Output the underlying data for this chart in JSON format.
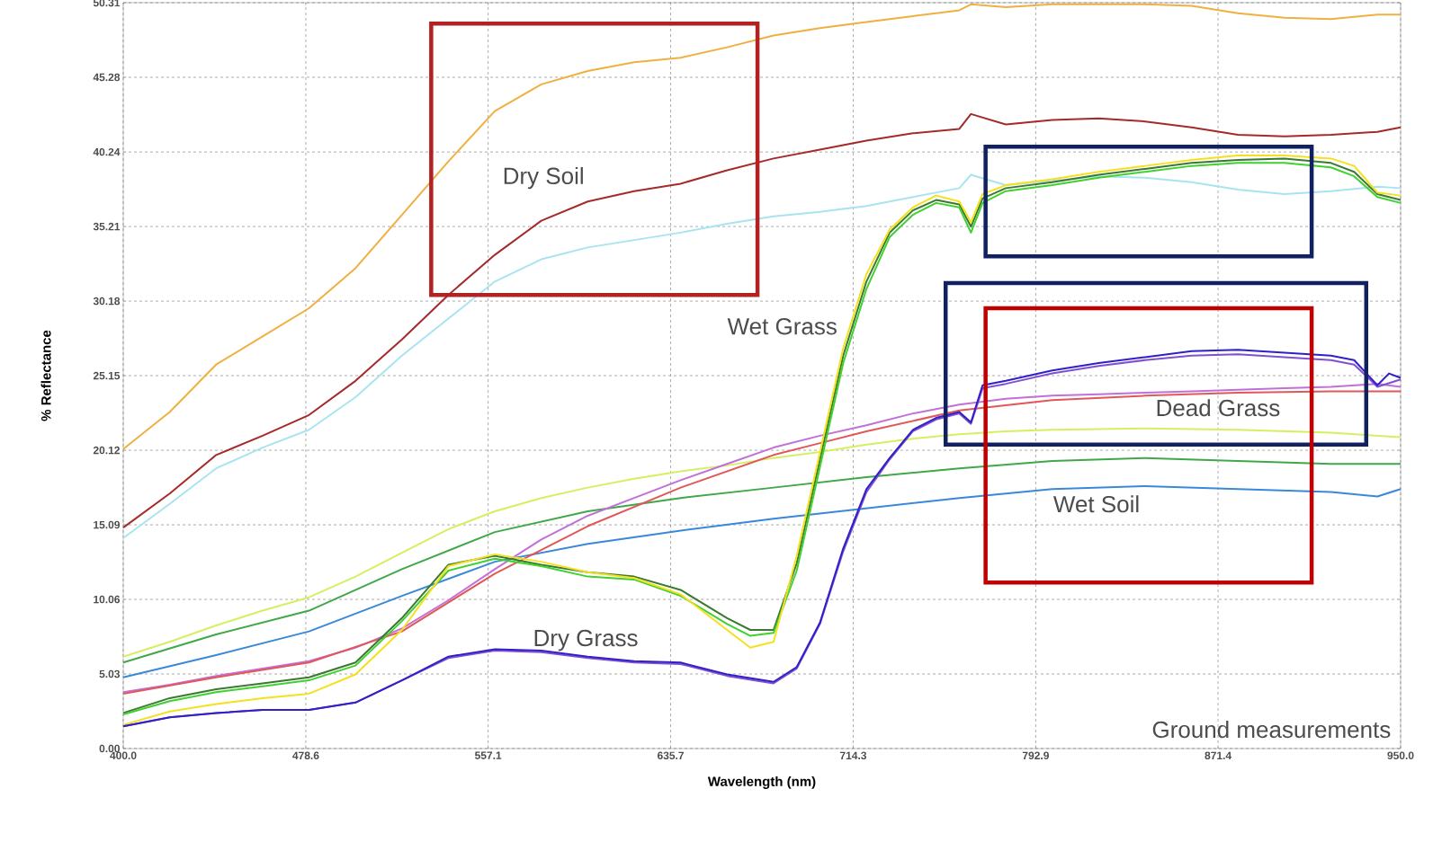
{
  "chart_data": {
    "type": "line",
    "xlabel": "Wavelength (nm)",
    "ylabel": "% Reflectance",
    "xlim": [
      400,
      950
    ],
    "ylim": [
      0,
      50.31
    ],
    "xticks": [
      {
        "value": 400,
        "label": "400.0"
      },
      478.6,
      557.1,
      635.7,
      714.3,
      792.9,
      871.4,
      {
        "value": 950,
        "label": "950.0"
      }
    ],
    "yticks": [
      {
        "value": 0,
        "label": "0.00"
      },
      5.03,
      10.06,
      15.09,
      20.12,
      25.15,
      30.18,
      35.21,
      40.24,
      45.28,
      50.31
    ],
    "grid": true,
    "marker": "none",
    "line_style": "solid",
    "annotations": [
      "Dry Soil",
      "Wet Grass",
      "Dead Grass",
      "Wet Soil",
      "Dry Grass",
      "Ground measurements"
    ],
    "series": [
      {
        "color": "#f0b040",
        "x": [
          400,
          420,
          440,
          460,
          480,
          500,
          520,
          540,
          560,
          580,
          600,
          620,
          640,
          660,
          680,
          700,
          720,
          740,
          760,
          765,
          780,
          800,
          820,
          840,
          860,
          880,
          900,
          920,
          940,
          950
        ],
        "values": [
          20.2,
          22.7,
          25.9,
          27.8,
          29.7,
          32.4,
          36.0,
          39.6,
          43.0,
          44.8,
          45.7,
          46.3,
          46.6,
          47.3,
          48.1,
          48.6,
          49.0,
          49.4,
          49.8,
          50.2,
          50.0,
          50.2,
          50.2,
          50.2,
          50.1,
          49.6,
          49.3,
          49.2,
          49.5,
          49.5
        ]
      },
      {
        "color": "#a52a2a",
        "x": [
          400,
          420,
          440,
          460,
          480,
          500,
          520,
          540,
          560,
          580,
          600,
          620,
          640,
          660,
          680,
          700,
          720,
          740,
          760,
          765,
          780,
          800,
          820,
          840,
          860,
          880,
          900,
          920,
          940,
          950
        ],
        "values": [
          14.9,
          17.2,
          19.8,
          21.1,
          22.5,
          24.8,
          27.6,
          30.6,
          33.3,
          35.6,
          36.9,
          37.6,
          38.1,
          39.0,
          39.8,
          40.4,
          41.0,
          41.5,
          41.8,
          42.8,
          42.1,
          42.4,
          42.5,
          42.3,
          41.9,
          41.4,
          41.3,
          41.4,
          41.6,
          41.9
        ]
      },
      {
        "color": "#a8e4f0",
        "x": [
          400,
          420,
          440,
          460,
          480,
          500,
          520,
          540,
          560,
          580,
          600,
          620,
          640,
          660,
          680,
          700,
          720,
          740,
          760,
          765,
          780,
          800,
          820,
          840,
          860,
          880,
          900,
          920,
          940,
          950
        ],
        "values": [
          14.2,
          16.5,
          18.9,
          20.3,
          21.5,
          23.7,
          26.5,
          29.0,
          31.5,
          33.0,
          33.8,
          34.3,
          34.8,
          35.4,
          35.9,
          36.2,
          36.6,
          37.2,
          37.8,
          38.7,
          38.0,
          38.3,
          38.6,
          38.5,
          38.2,
          37.7,
          37.4,
          37.6,
          37.9,
          37.8
        ]
      },
      {
        "color": "#d4f060",
        "x": [
          400,
          420,
          440,
          460,
          480,
          500,
          520,
          540,
          560,
          580,
          600,
          620,
          640,
          660,
          680,
          700,
          720,
          740,
          760,
          780,
          800,
          840,
          880,
          920,
          950
        ],
        "values": [
          6.2,
          7.2,
          8.3,
          9.3,
          10.2,
          11.6,
          13.2,
          14.8,
          16.0,
          16.9,
          17.6,
          18.2,
          18.7,
          19.1,
          19.6,
          20.0,
          20.5,
          20.9,
          21.2,
          21.4,
          21.5,
          21.6,
          21.5,
          21.3,
          21.0
        ]
      },
      {
        "color": "#40a848",
        "x": [
          400,
          440,
          480,
          520,
          560,
          600,
          640,
          680,
          720,
          760,
          800,
          840,
          880,
          920,
          950
        ],
        "values": [
          5.8,
          7.7,
          9.3,
          12.1,
          14.6,
          16.0,
          16.9,
          17.6,
          18.3,
          18.9,
          19.4,
          19.6,
          19.4,
          19.2,
          19.2
        ]
      },
      {
        "color": "#3a88d8",
        "x": [
          400,
          440,
          480,
          520,
          560,
          600,
          640,
          680,
          720,
          760,
          800,
          840,
          880,
          920,
          940,
          950
        ],
        "values": [
          4.8,
          6.3,
          7.9,
          10.3,
          12.6,
          13.8,
          14.7,
          15.5,
          16.2,
          16.9,
          17.5,
          17.7,
          17.5,
          17.3,
          17.0,
          17.5
        ]
      },
      {
        "color": "#c070d8",
        "x": [
          400,
          420,
          440,
          460,
          480,
          500,
          520,
          540,
          560,
          580,
          600,
          620,
          640,
          660,
          680,
          700,
          720,
          740,
          760,
          780,
          800,
          820,
          840,
          860,
          880,
          900,
          920,
          940,
          950
        ],
        "values": [
          3.8,
          4.3,
          4.9,
          5.4,
          5.9,
          6.8,
          8.1,
          10.0,
          12.1,
          14.1,
          15.7,
          16.9,
          18.1,
          19.2,
          20.3,
          21.1,
          21.8,
          22.6,
          23.2,
          23.6,
          23.8,
          23.9,
          24.0,
          24.1,
          24.2,
          24.3,
          24.4,
          24.6,
          24.4
        ]
      },
      {
        "color": "#e05858",
        "x": [
          400,
          440,
          480,
          520,
          560,
          600,
          640,
          680,
          700,
          720,
          760,
          800,
          840,
          880,
          920,
          950
        ],
        "values": [
          3.7,
          4.8,
          5.8,
          7.9,
          11.8,
          15.0,
          17.6,
          19.8,
          20.6,
          21.4,
          22.8,
          23.5,
          23.8,
          24.0,
          24.1,
          24.1
        ]
      },
      {
        "color": "#3a7a30",
        "x": [
          400,
          420,
          440,
          460,
          480,
          500,
          520,
          540,
          560,
          580,
          600,
          620,
          640,
          660,
          670,
          680,
          690,
          700,
          710,
          720,
          730,
          740,
          750,
          760,
          765,
          770,
          780,
          800,
          820,
          840,
          860,
          880,
          900,
          920,
          930,
          940,
          950
        ],
        "values": [
          2.4,
          3.4,
          4.0,
          4.4,
          4.8,
          5.8,
          8.8,
          12.4,
          13.0,
          12.4,
          11.9,
          11.6,
          10.7,
          8.8,
          8.0,
          8.0,
          12.5,
          19.5,
          26.5,
          31.5,
          34.8,
          36.3,
          37.0,
          36.7,
          35.2,
          37.1,
          37.8,
          38.2,
          38.7,
          39.1,
          39.5,
          39.7,
          39.8,
          39.5,
          38.9,
          37.4,
          37.0
        ]
      },
      {
        "color": "#40d030",
        "x": [
          400,
          420,
          440,
          460,
          480,
          500,
          520,
          540,
          560,
          580,
          600,
          620,
          640,
          660,
          670,
          680,
          690,
          700,
          710,
          720,
          730,
          740,
          750,
          760,
          765,
          770,
          780,
          800,
          820,
          840,
          860,
          880,
          900,
          920,
          930,
          940,
          950
        ],
        "values": [
          2.3,
          3.2,
          3.8,
          4.2,
          4.6,
          5.6,
          8.6,
          12.0,
          12.8,
          12.3,
          11.6,
          11.4,
          10.3,
          8.4,
          7.6,
          7.8,
          12.0,
          19.0,
          26.0,
          31.0,
          34.5,
          36.0,
          36.8,
          36.5,
          34.8,
          36.8,
          37.6,
          38.0,
          38.5,
          38.9,
          39.3,
          39.5,
          39.5,
          39.2,
          38.6,
          37.2,
          36.8
        ]
      },
      {
        "color": "#f5e020",
        "x": [
          400,
          420,
          440,
          460,
          480,
          500,
          520,
          540,
          560,
          580,
          600,
          620,
          640,
          660,
          670,
          680,
          690,
          700,
          710,
          720,
          730,
          740,
          750,
          760,
          765,
          770,
          780,
          800,
          820,
          840,
          860,
          880,
          900,
          920,
          930,
          940,
          950
        ],
        "values": [
          1.6,
          2.5,
          3.0,
          3.4,
          3.7,
          5.0,
          8.0,
          12.3,
          13.1,
          12.6,
          11.9,
          11.5,
          10.4,
          8.0,
          6.8,
          7.2,
          13.0,
          20.0,
          27.0,
          32.0,
          35.0,
          36.5,
          37.3,
          36.9,
          35.5,
          37.4,
          38.0,
          38.4,
          38.9,
          39.3,
          39.7,
          40.0,
          40.0,
          39.8,
          39.3,
          37.5,
          37.3
        ]
      },
      {
        "color": "#8050d0",
        "x": [
          400,
          420,
          440,
          460,
          480,
          500,
          520,
          540,
          560,
          580,
          600,
          620,
          640,
          660,
          680,
          690,
          700,
          710,
          720,
          730,
          740,
          750,
          760,
          765,
          770,
          780,
          800,
          820,
          840,
          860,
          880,
          900,
          920,
          930,
          940,
          950
        ],
        "values": [
          1.5,
          2.1,
          2.4,
          2.6,
          2.6,
          3.1,
          4.6,
          6.1,
          6.6,
          6.5,
          6.1,
          5.8,
          5.7,
          4.9,
          4.4,
          5.4,
          8.4,
          13.3,
          17.3,
          19.5,
          21.4,
          22.2,
          22.6,
          21.9,
          24.3,
          24.6,
          25.3,
          25.8,
          26.2,
          26.5,
          26.6,
          26.4,
          26.2,
          25.9,
          24.4,
          24.9
        ]
      },
      {
        "color": "#3020c8",
        "x": [
          400,
          420,
          440,
          460,
          480,
          500,
          520,
          540,
          560,
          580,
          600,
          620,
          640,
          660,
          680,
          690,
          700,
          710,
          720,
          730,
          740,
          750,
          760,
          765,
          770,
          780,
          800,
          820,
          840,
          860,
          880,
          900,
          920,
          930,
          940,
          945,
          950
        ],
        "values": [
          1.5,
          2.1,
          2.4,
          2.6,
          2.6,
          3.1,
          4.6,
          6.2,
          6.7,
          6.6,
          6.2,
          5.9,
          5.8,
          5.0,
          4.5,
          5.5,
          8.5,
          13.5,
          17.5,
          19.6,
          21.5,
          22.3,
          22.7,
          22.0,
          24.5,
          24.8,
          25.5,
          26.0,
          26.4,
          26.8,
          26.9,
          26.7,
          26.5,
          26.2,
          24.5,
          25.3,
          25.0
        ]
      }
    ]
  }
}
